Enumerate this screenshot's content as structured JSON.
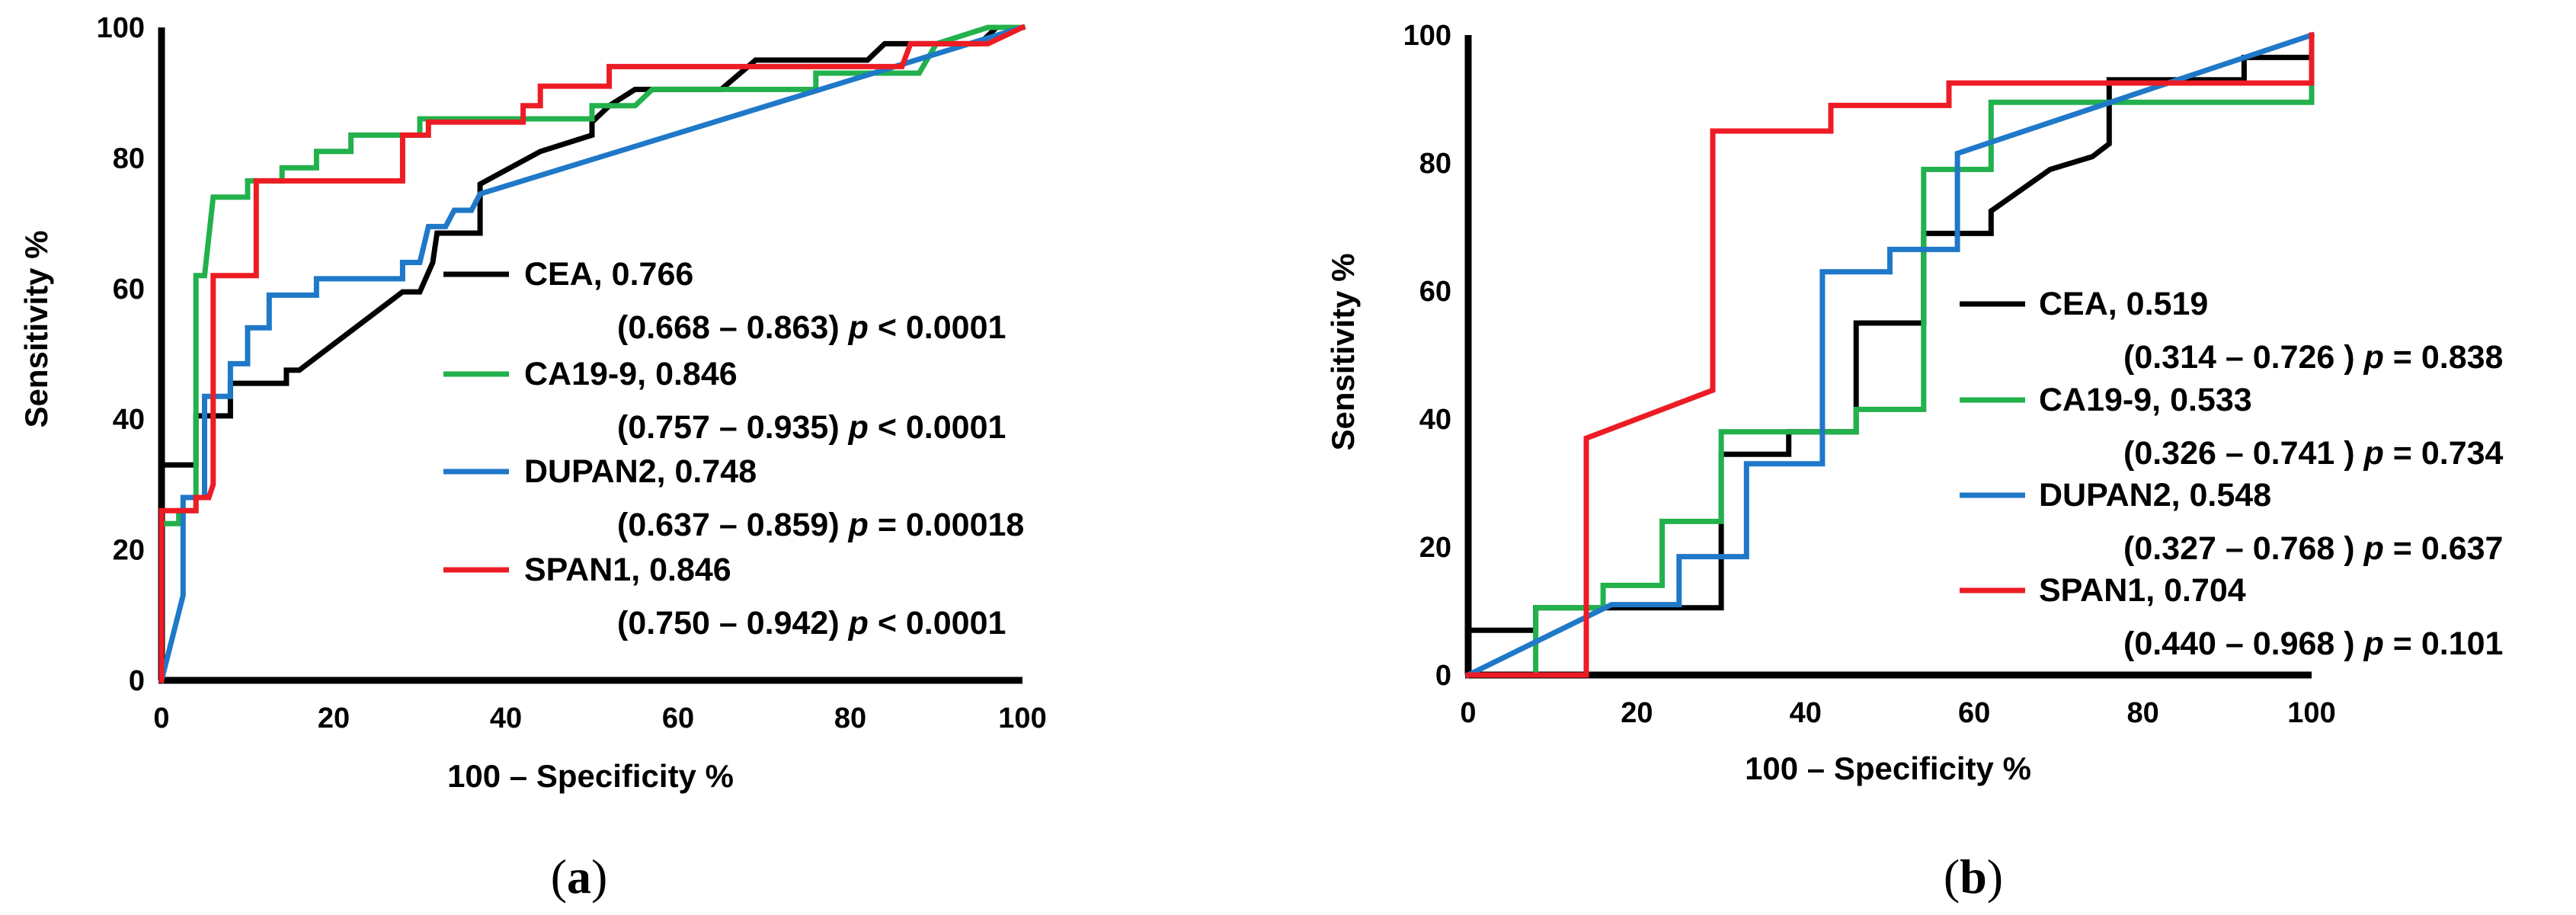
{
  "chart_data": [
    {
      "type": "line",
      "panel": "a",
      "caption_open": "(",
      "caption_letter": "a",
      "caption_close": ")",
      "xlabel": "100 – Specificity %",
      "ylabel": "Sensitivity %",
      "xlim": [
        0,
        100
      ],
      "ylim": [
        0,
        100
      ],
      "xticks": [
        0,
        20,
        40,
        60,
        80,
        100
      ],
      "yticks": [
        0,
        20,
        40,
        60,
        80,
        100
      ],
      "series": [
        {
          "name": "CEA",
          "color": "#000000",
          "legend_line1": "CEA, 0.766",
          "legend_ci": "(0.668 – 0.863) ",
          "legend_p": "p",
          "legend_stat": " < 0.0001",
          "points": [
            [
              0,
              0
            ],
            [
              0,
              33
            ],
            [
              4,
              33
            ],
            [
              4,
              40.5
            ],
            [
              8,
              40.5
            ],
            [
              8,
              45.5
            ],
            [
              14.5,
              45.5
            ],
            [
              14.5,
              47.5
            ],
            [
              16,
              47.5
            ],
            [
              28,
              59.5
            ],
            [
              30,
              59.5
            ],
            [
              31.5,
              64
            ],
            [
              32,
              68.5
            ],
            [
              37,
              68.5
            ],
            [
              37,
              76
            ],
            [
              44,
              81
            ],
            [
              50,
              83.5
            ],
            [
              50,
              85.5
            ],
            [
              52,
              88
            ],
            [
              55,
              90.5
            ],
            [
              65,
              90.5
            ],
            [
              69,
              95
            ],
            [
              82,
              95
            ],
            [
              84,
              97.5
            ],
            [
              95,
              97.5
            ],
            [
              97,
              100
            ],
            [
              100,
              100
            ]
          ]
        },
        {
          "name": "CA19-9",
          "color": "#22b14c",
          "legend_line1": "CA19-9, 0.846",
          "legend_ci": "(0.757 – 0.935) ",
          "legend_p": "p",
          "legend_stat": " < 0.0001",
          "points": [
            [
              0,
              0
            ],
            [
              0,
              24
            ],
            [
              2,
              24
            ],
            [
              2,
              26
            ],
            [
              4,
              26
            ],
            [
              4,
              62
            ],
            [
              5,
              62
            ],
            [
              6,
              74
            ],
            [
              10,
              74
            ],
            [
              10,
              76.5
            ],
            [
              14,
              76.5
            ],
            [
              14,
              78.5
            ],
            [
              18,
              78.5
            ],
            [
              18,
              81
            ],
            [
              22,
              81
            ],
            [
              22,
              83.5
            ],
            [
              30,
              83.5
            ],
            [
              30,
              86
            ],
            [
              50,
              86
            ],
            [
              50,
              88
            ],
            [
              55,
              88
            ],
            [
              57,
              90.5
            ],
            [
              76,
              90.5
            ],
            [
              76,
              93
            ],
            [
              88,
              93
            ],
            [
              90,
              97.5
            ],
            [
              96,
              100
            ],
            [
              100,
              100
            ]
          ]
        },
        {
          "name": "DUPAN2",
          "color": "#1f78c8",
          "legend_line1": "DUPAN2, 0.748",
          "legend_ci": "(0.637 – 0.859) ",
          "legend_p": "p",
          "legend_stat": " = 0.00018",
          "points": [
            [
              0,
              0
            ],
            [
              2.5,
              13
            ],
            [
              2.5,
              28
            ],
            [
              5,
              28
            ],
            [
              5,
              43.5
            ],
            [
              8,
              43.5
            ],
            [
              8,
              48.5
            ],
            [
              10,
              48.5
            ],
            [
              10,
              54
            ],
            [
              12.5,
              54
            ],
            [
              12.5,
              59
            ],
            [
              18,
              59
            ],
            [
              18,
              61.5
            ],
            [
              28,
              61.5
            ],
            [
              28,
              64
            ],
            [
              30,
              64
            ],
            [
              31,
              69.5
            ],
            [
              33,
              69.5
            ],
            [
              34,
              72
            ],
            [
              36,
              72
            ],
            [
              37,
              74.5
            ],
            [
              100,
              100
            ]
          ]
        },
        {
          "name": "SPAN1",
          "color": "#ed1c24",
          "legend_line1": "SPAN1, 0.846",
          "legend_ci": "(0.750 – 0.942) ",
          "legend_p": "p",
          "legend_stat": " < 0.0001",
          "points": [
            [
              0,
              0
            ],
            [
              0,
              26
            ],
            [
              4,
              26
            ],
            [
              4,
              28
            ],
            [
              5.5,
              28
            ],
            [
              6,
              30
            ],
            [
              6,
              62
            ],
            [
              11,
              62
            ],
            [
              11,
              76.5
            ],
            [
              28,
              76.5
            ],
            [
              28,
              83.5
            ],
            [
              31,
              83.5
            ],
            [
              31,
              85.5
            ],
            [
              42,
              85.5
            ],
            [
              42,
              88
            ],
            [
              44,
              88
            ],
            [
              44,
              91
            ],
            [
              52,
              91
            ],
            [
              52,
              94
            ],
            [
              86,
              94
            ],
            [
              87,
              97.5
            ],
            [
              93,
              97.5
            ],
            [
              96,
              97.5
            ],
            [
              100,
              100
            ]
          ]
        }
      ]
    },
    {
      "type": "line",
      "panel": "b",
      "caption_open": "(",
      "caption_letter": "b",
      "caption_close": ")",
      "xlabel": "100 – Specificity %",
      "ylabel": "Sensitivity %",
      "xlim": [
        0,
        100
      ],
      "ylim": [
        0,
        100
      ],
      "xticks": [
        0,
        20,
        40,
        60,
        80,
        100
      ],
      "yticks": [
        0,
        20,
        40,
        60,
        80,
        100
      ],
      "series": [
        {
          "name": "CEA",
          "color": "#000000",
          "legend_line1": "CEA, 0.519",
          "legend_ci": "(0.314 – 0.726 ) ",
          "legend_p": "p",
          "legend_stat": " = 0.838",
          "points": [
            [
              0,
              0
            ],
            [
              0,
              7
            ],
            [
              8,
              7
            ],
            [
              8,
              10.5
            ],
            [
              30,
              10.5
            ],
            [
              30,
              34.5
            ],
            [
              38,
              34.5
            ],
            [
              38,
              38
            ],
            [
              46,
              38
            ],
            [
              46,
              55
            ],
            [
              54,
              55
            ],
            [
              54,
              69
            ],
            [
              62,
              69
            ],
            [
              62,
              72.5
            ],
            [
              69,
              79
            ],
            [
              74,
              81
            ],
            [
              76,
              83
            ],
            [
              76,
              93
            ],
            [
              92,
              93
            ],
            [
              92,
              96.5
            ],
            [
              100,
              96.5
            ],
            [
              100,
              100
            ]
          ]
        },
        {
          "name": "CA19-9",
          "color": "#22b14c",
          "legend_line1": "CA19-9, 0.533",
          "legend_ci": "(0.326 – 0.741 ) ",
          "legend_p": "p",
          "legend_stat": " = 0.734",
          "points": [
            [
              0,
              0
            ],
            [
              8,
              0
            ],
            [
              8,
              10.5
            ],
            [
              16,
              10.5
            ],
            [
              16,
              14
            ],
            [
              23,
              14
            ],
            [
              23,
              24
            ],
            [
              30,
              24
            ],
            [
              30,
              38
            ],
            [
              46,
              38
            ],
            [
              46,
              41.5
            ],
            [
              54,
              41.5
            ],
            [
              54,
              79
            ],
            [
              62,
              79
            ],
            [
              62,
              89.5
            ],
            [
              100,
              89.5
            ],
            [
              100,
              100
            ]
          ]
        },
        {
          "name": "DUPAN2",
          "color": "#1f78c8",
          "legend_line1": "DUPAN2, 0.548",
          "legend_ci": "(0.327 – 0.768 ) ",
          "legend_p": "p",
          "legend_stat": " = 0.637",
          "points": [
            [
              0,
              0
            ],
            [
              17,
              11
            ],
            [
              25,
              11
            ],
            [
              25,
              18.5
            ],
            [
              33,
              18.5
            ],
            [
              33,
              33
            ],
            [
              42,
              33
            ],
            [
              42,
              63
            ],
            [
              50,
              63
            ],
            [
              50,
              66.5
            ],
            [
              58,
              66.5
            ],
            [
              58,
              81.5
            ],
            [
              100,
              100
            ]
          ]
        },
        {
          "name": "SPAN1",
          "color": "#ed1c24",
          "legend_line1": "SPAN1, 0.704",
          "legend_ci": "(0.440 – 0.968 ) ",
          "legend_p": "p",
          "legend_stat": " = 0.101",
          "points": [
            [
              0,
              0
            ],
            [
              14,
              0
            ],
            [
              14,
              37
            ],
            [
              29,
              44.5
            ],
            [
              29,
              85
            ],
            [
              43,
              85
            ],
            [
              43,
              89
            ],
            [
              57,
              89
            ],
            [
              57,
              92.5
            ],
            [
              100,
              92.5
            ],
            [
              100,
              100
            ]
          ]
        }
      ]
    }
  ]
}
